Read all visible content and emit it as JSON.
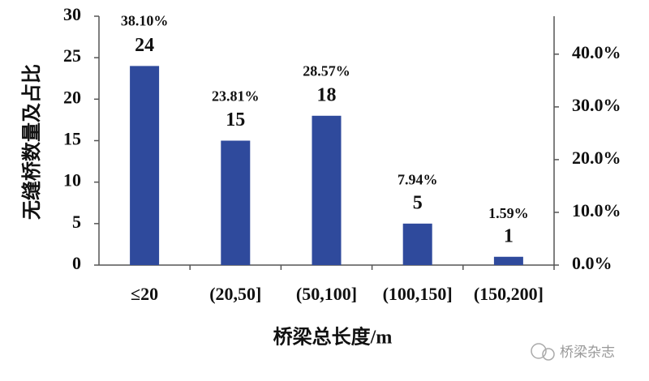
{
  "chart_data": {
    "type": "bar",
    "categories": [
      "≤20",
      "(20,50]",
      "(50,100]",
      "(100,150]",
      "(150,200]"
    ],
    "series": [
      {
        "color": "#2f4a9c",
        "values": [
          24,
          15,
          18,
          5,
          1
        ]
      },
      {
        "axis": "y2",
        "values": [
          38.1,
          23.81,
          28.57,
          7.94,
          1.59
        ],
        "value_labels": [
          "38.10%",
          "23.81%",
          "28.57%",
          "7.94%",
          "1.59%"
        ]
      }
    ],
    "ylim": [
      0,
      30
    ],
    "yticks": [
      0,
      5,
      10,
      15,
      20,
      25,
      30
    ],
    "y2lim": [
      0,
      47.2
    ],
    "y2ticks": [
      {
        "value": 0,
        "label": "0.0%"
      },
      {
        "value": 10,
        "label": "10.0%"
      },
      {
        "value": 20,
        "label": "20.0%"
      },
      {
        "value": 30,
        "label": "30.0%"
      },
      {
        "value": 40,
        "label": "40.0%"
      }
    ],
    "ylabel": "无缝桥数量及占比",
    "xlabel": "桥梁总长度/m",
    "watermark": "桥梁杂志"
  }
}
